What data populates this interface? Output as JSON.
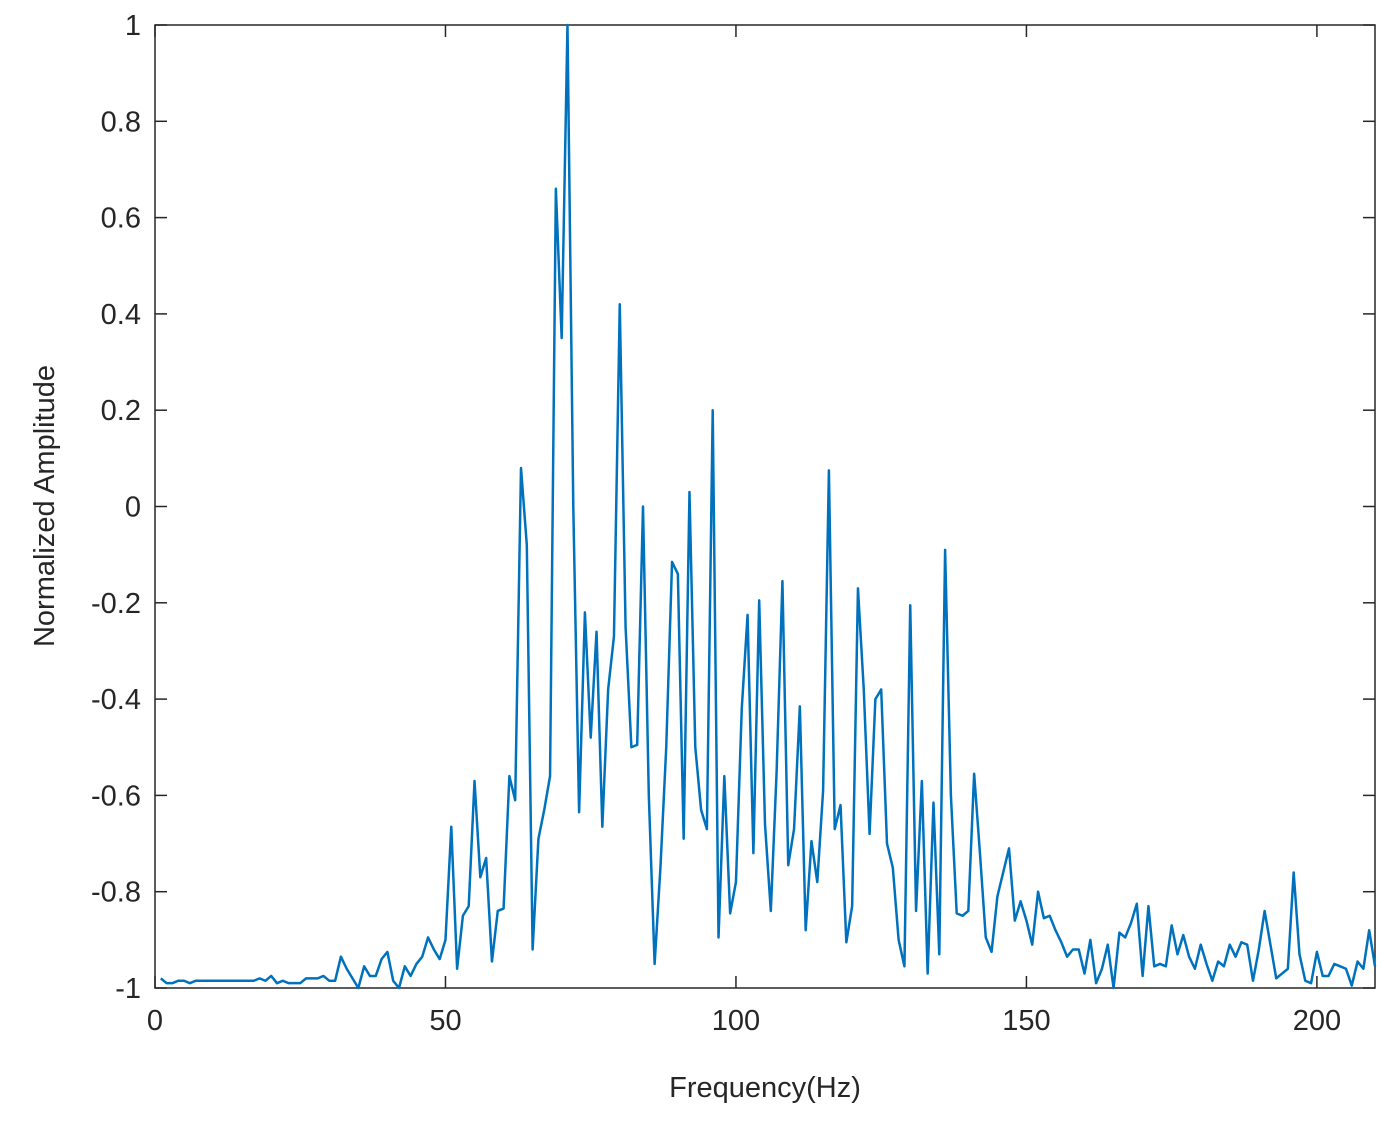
{
  "chart_data": {
    "type": "line",
    "xlabel": "Frequency(Hz)",
    "ylabel": "Normalized Amplitude",
    "color": "#0072bd",
    "xlim": [
      0,
      210
    ],
    "xticks": [
      0,
      50,
      100,
      150,
      200
    ],
    "ylim": [
      -1,
      1
    ],
    "yticks": [
      -1,
      -0.8,
      -0.6,
      -0.4,
      -0.2,
      0,
      0.2,
      0.4,
      0.6,
      0.8,
      1
    ],
    "x": [
      1,
      2,
      3,
      4,
      5,
      6,
      7,
      8,
      9,
      10,
      11,
      12,
      13,
      14,
      15,
      16,
      17,
      18,
      19,
      20,
      21,
      22,
      23,
      24,
      25,
      26,
      27,
      28,
      29,
      30,
      31,
      32,
      33,
      34,
      35,
      36,
      37,
      38,
      39,
      40,
      41,
      42,
      43,
      44,
      45,
      46,
      47,
      48,
      49,
      50,
      51,
      52,
      53,
      54,
      55,
      56,
      57,
      58,
      59,
      60,
      61,
      62,
      63,
      64,
      65,
      66,
      67,
      68,
      69,
      70,
      71,
      72,
      73,
      74,
      75,
      76,
      77,
      78,
      79,
      80,
      81,
      82,
      83,
      84,
      85,
      86,
      87,
      88,
      89,
      90,
      91,
      92,
      93,
      94,
      95,
      96,
      97,
      98,
      99,
      100,
      101,
      102,
      103,
      104,
      105,
      106,
      107,
      108,
      109,
      110,
      111,
      112,
      113,
      114,
      115,
      116,
      117,
      118,
      119,
      120,
      121,
      122,
      123,
      124,
      125,
      126,
      127,
      128,
      129,
      130,
      131,
      132,
      133,
      134,
      135,
      136,
      137,
      138,
      139,
      140,
      141,
      142,
      143,
      144,
      145,
      146,
      147,
      148,
      149,
      150,
      151,
      152,
      153,
      154,
      155,
      156,
      157,
      158,
      159,
      160,
      161,
      162,
      163,
      164,
      165,
      166,
      167,
      168,
      169,
      170,
      171,
      172,
      173,
      174,
      175,
      176,
      177,
      178,
      179,
      180,
      181,
      182,
      183,
      184,
      185,
      186,
      187,
      188,
      189,
      190,
      191,
      192,
      193,
      194,
      195,
      196,
      197,
      198,
      199,
      200,
      201,
      202,
      203,
      204,
      205,
      206,
      207,
      208,
      209,
      210
    ],
    "values": [
      -0.98,
      -0.99,
      -0.99,
      -0.985,
      -0.985,
      -0.99,
      -0.985,
      -0.985,
      -0.985,
      -0.985,
      -0.985,
      -0.985,
      -0.985,
      -0.985,
      -0.985,
      -0.985,
      -0.985,
      -0.98,
      -0.985,
      -0.975,
      -0.99,
      -0.985,
      -0.99,
      -0.99,
      -0.99,
      -0.98,
      -0.98,
      -0.98,
      -0.975,
      -0.985,
      -0.985,
      -0.935,
      -0.96,
      -0.98,
      -1.0,
      -0.955,
      -0.975,
      -0.975,
      -0.94,
      -0.925,
      -0.985,
      -1.0,
      -0.955,
      -0.975,
      -0.95,
      -0.935,
      -0.895,
      -0.92,
      -0.94,
      -0.9,
      -0.665,
      -0.96,
      -0.85,
      -0.83,
      -0.57,
      -0.77,
      -0.73,
      -0.945,
      -0.84,
      -0.835,
      -0.56,
      -0.61,
      0.08,
      -0.08,
      -0.92,
      -0.69,
      -0.63,
      -0.56,
      0.66,
      0.35,
      1.0,
      0.0,
      -0.635,
      -0.22,
      -0.48,
      -0.26,
      -0.665,
      -0.38,
      -0.27,
      0.42,
      -0.25,
      -0.5,
      -0.495,
      0.0,
      -0.6,
      -0.95,
      -0.75,
      -0.5,
      -0.115,
      -0.14,
      -0.69,
      0.03,
      -0.5,
      -0.63,
      -0.67,
      0.2,
      -0.895,
      -0.56,
      -0.845,
      -0.78,
      -0.42,
      -0.225,
      -0.72,
      -0.195,
      -0.66,
      -0.84,
      -0.55,
      -0.155,
      -0.745,
      -0.67,
      -0.415,
      -0.88,
      -0.695,
      -0.78,
      -0.59,
      0.075,
      -0.67,
      -0.62,
      -0.905,
      -0.83,
      -0.17,
      -0.38,
      -0.68,
      -0.4,
      -0.38,
      -0.7,
      -0.75,
      -0.9,
      -0.955,
      -0.205,
      -0.84,
      -0.57,
      -0.97,
      -0.615,
      -0.93,
      -0.09,
      -0.6,
      -0.845,
      -0.85,
      -0.84,
      -0.555,
      -0.72,
      -0.895,
      -0.925,
      -0.81,
      -0.76,
      -0.71,
      -0.86,
      -0.82,
      -0.86,
      -0.91,
      -0.8,
      -0.855,
      -0.85,
      -0.88,
      -0.905,
      -0.935,
      -0.92,
      -0.92,
      -0.97,
      -0.9,
      -0.99,
      -0.96,
      -0.91,
      -1.0,
      -0.885,
      -0.895,
      -0.865,
      -0.825,
      -0.975,
      -0.83,
      -0.955,
      -0.95,
      -0.955,
      -0.87,
      -0.93,
      -0.89,
      -0.935,
      -0.96,
      -0.91,
      -0.95,
      -0.985,
      -0.945,
      -0.955,
      -0.91,
      -0.935,
      -0.905,
      -0.91,
      -0.985,
      -0.92,
      -0.84,
      -0.91,
      -0.98,
      -0.97,
      -0.96,
      -0.76,
      -0.93,
      -0.985,
      -0.99,
      -0.925,
      -0.975,
      -0.975,
      -0.95,
      -0.955,
      -0.96,
      -0.995,
      -0.945,
      -0.96,
      -0.88,
      -0.955
    ]
  }
}
